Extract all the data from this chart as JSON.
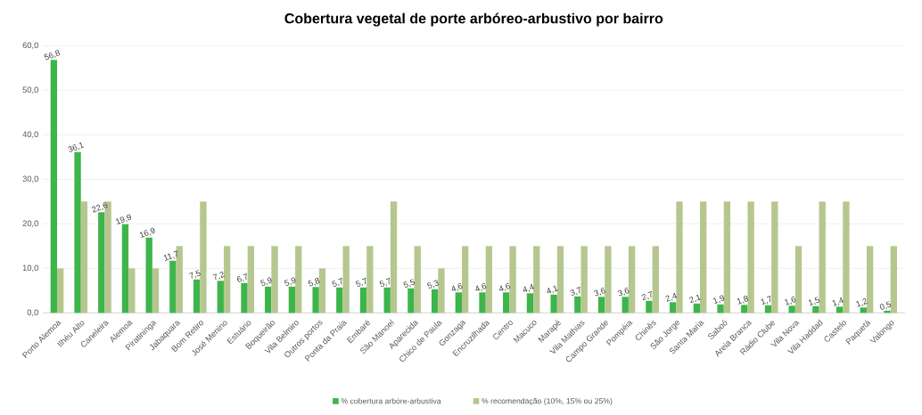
{
  "chart_data": {
    "type": "bar",
    "title": "Cobertura vegetal de porte arbóreo-arbustivo por bairro",
    "categories": [
      "Porto Alemoa",
      "Ilhéu Alto",
      "Caneleira",
      "Alemoa",
      "Piratininga",
      "Jabaquara",
      "Bom Retiro",
      "José Menino",
      "Estuário",
      "Boqueirão",
      "Vila Belmiro",
      "Outros portos",
      "Ponta da Praia",
      "Embaré",
      "São Manoel",
      "Aparecida",
      "Chico de Paula",
      "Gonzaga",
      "Encruzilhada",
      "Centro",
      "Macuco",
      "Marapé",
      "Vila Mathias",
      "Campo Grande",
      "Pompéia",
      "Chinês",
      "São Jorge",
      "Santa Maria",
      "Saboó",
      "Areia Branca",
      "Rádio Clube",
      "Vila Nova",
      "Vila Haddad",
      "Castelo",
      "Paquetá",
      "Valongo"
    ],
    "series": [
      {
        "name": "% cobertura arbóre-arbustiva",
        "color": "#3db54a",
        "values": [
          56.8,
          36.1,
          22.6,
          19.9,
          16.9,
          11.7,
          7.5,
          7.2,
          6.7,
          5.9,
          5.9,
          5.8,
          5.7,
          5.7,
          5.7,
          5.5,
          5.3,
          4.6,
          4.6,
          4.6,
          4.4,
          4.1,
          3.7,
          3.6,
          3.6,
          2.7,
          2.4,
          2.1,
          1.9,
          1.8,
          1.7,
          1.6,
          1.5,
          1.4,
          1.2,
          0.5
        ],
        "value_labels": [
          "56,8",
          "36,1",
          "22,6",
          "19,9",
          "16,9",
          "11,7",
          "7,5",
          "7,2",
          "6,7",
          "5,9",
          "5,9",
          "5,8",
          "5,7",
          "5,7",
          "5,7",
          "5,5",
          "5,3",
          "4,6",
          "4,6",
          "4,6",
          "4,4",
          "4,1",
          "3,7",
          "3,6",
          "3,6",
          "2,7",
          "2,4",
          "2,1",
          "1,9",
          "1,8",
          "1,7",
          "1,6",
          "1,5",
          "1,4",
          "1,2",
          "0,5"
        ]
      },
      {
        "name": "% recomendação (10%, 15% ou 25%)",
        "color": "#b5c78f",
        "values": [
          10,
          25,
          25,
          10,
          10,
          15,
          25,
          15,
          15,
          15,
          15,
          10,
          15,
          15,
          25,
          15,
          10,
          15,
          15,
          15,
          15,
          15,
          15,
          15,
          15,
          15,
          25,
          25,
          25,
          25,
          25,
          15,
          25,
          25,
          15,
          15
        ]
      }
    ],
    "ylim": [
      0,
      60
    ],
    "yticks": [
      {
        "value": 0,
        "label": "0,0"
      },
      {
        "value": 10,
        "label": "10,0"
      },
      {
        "value": 20,
        "label": "20,0"
      },
      {
        "value": 30,
        "label": "30,0"
      },
      {
        "value": 40,
        "label": "40,0"
      },
      {
        "value": 50,
        "label": "50,0"
      },
      {
        "value": 60,
        "label": "60,0"
      }
    ],
    "grid": "y",
    "legend": "bottom"
  }
}
